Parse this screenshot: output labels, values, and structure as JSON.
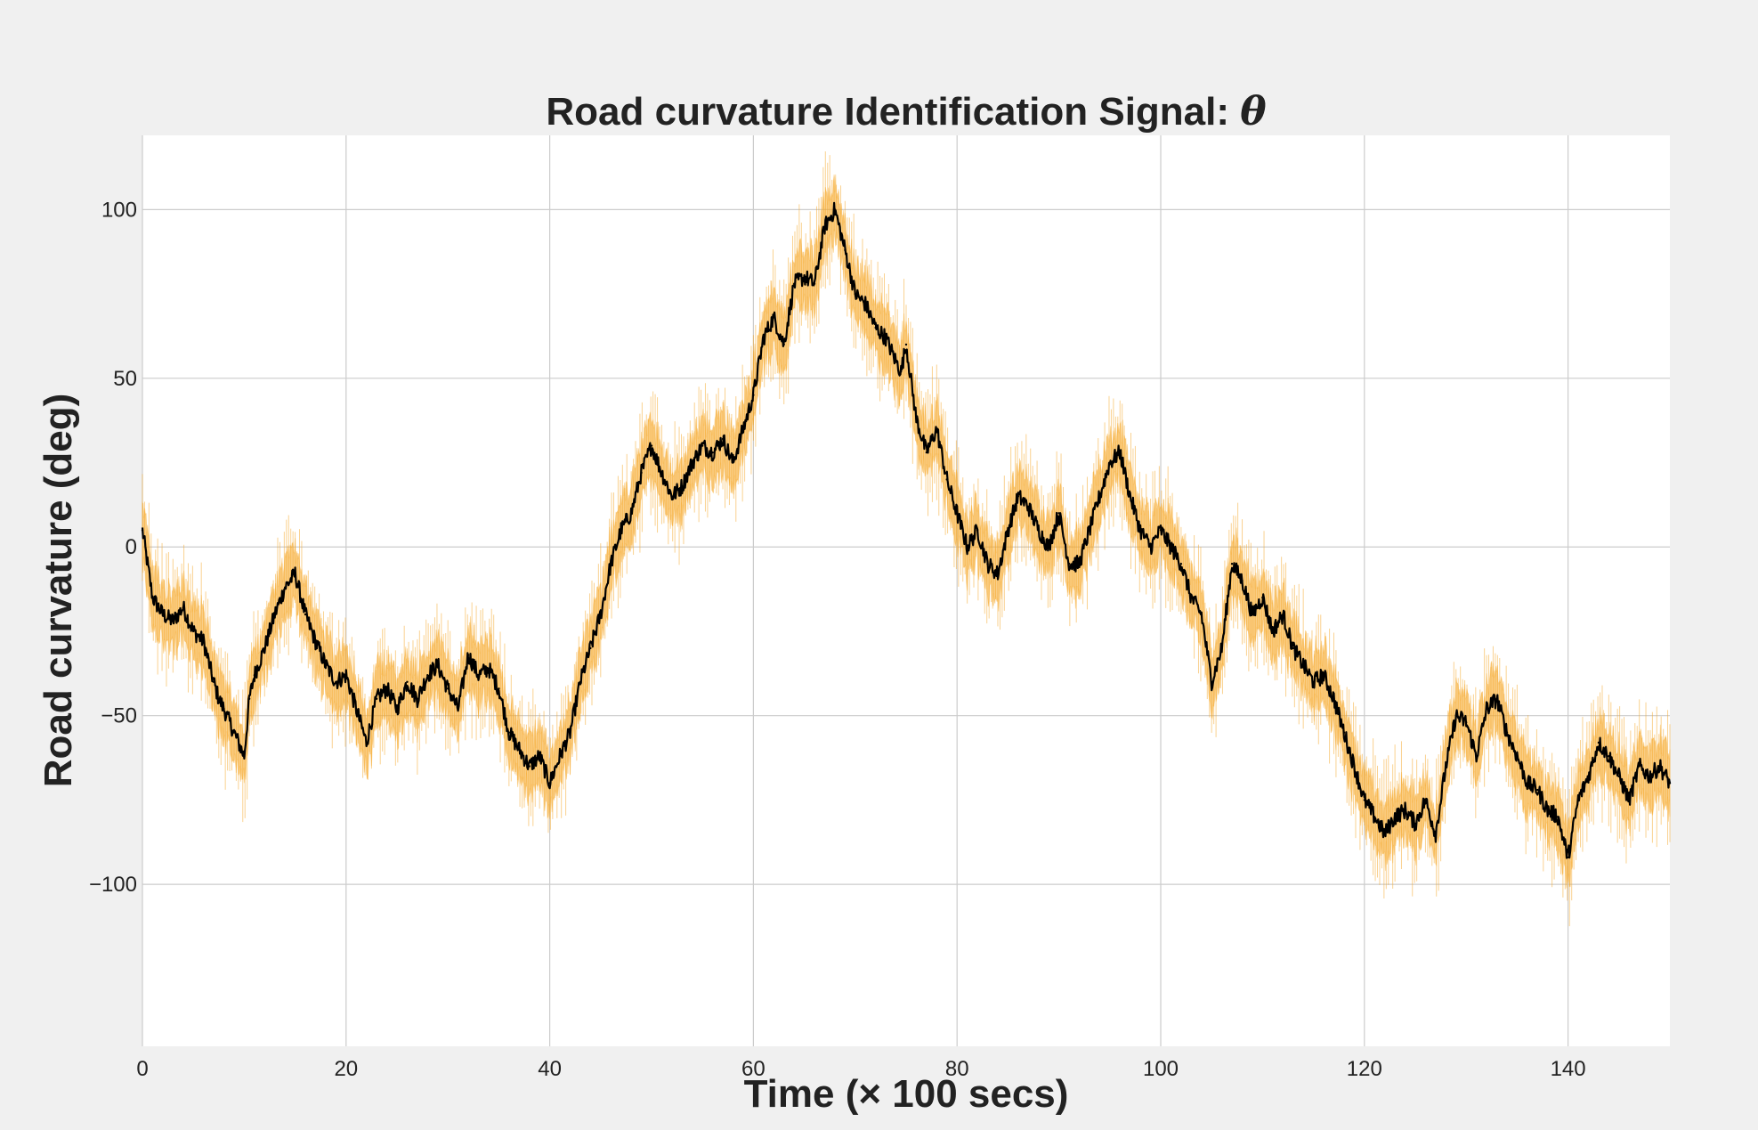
{
  "chart_data": {
    "type": "line",
    "title": "Road curvature Identification Signal: θ",
    "title_parts": {
      "text": "Road curvature Identification Signal: ",
      "symbol": "θ"
    },
    "xlabel": "Time (× 100 secs)",
    "ylabel": "Road curvature (deg)",
    "xlim": [
      0,
      150
    ],
    "ylim": [
      -148,
      122
    ],
    "xticks": [
      0,
      20,
      40,
      60,
      80,
      100,
      120,
      140
    ],
    "xtick_labels": [
      "0",
      "20",
      "40",
      "60",
      "80",
      "100",
      "120",
      "140"
    ],
    "yticks": [
      100,
      50,
      0,
      -50,
      -100
    ],
    "ytick_labels": [
      "100",
      "50",
      "0",
      "−50",
      "−100"
    ],
    "grid": true,
    "legend": "none",
    "colors": {
      "figure_background": "#f0f0f0",
      "plot_background": "#ffffff",
      "grid": "#cccccc",
      "line": "#000000",
      "band": "#f5a623",
      "text": "#222222"
    },
    "series": [
      {
        "style": "line with shaded uncertainty band",
        "band_halfwidth": 8,
        "x": [
          0,
          0.5,
          1,
          2,
          3,
          4,
          5,
          6,
          7,
          7.5,
          8,
          9,
          10,
          10.5,
          11,
          12,
          13,
          14,
          15,
          16,
          17,
          18,
          19,
          20,
          21,
          22,
          23,
          24,
          25,
          26,
          27,
          28,
          29,
          30,
          31,
          32,
          33,
          34,
          35,
          36,
          37,
          38,
          39,
          40,
          41,
          42,
          43,
          44,
          45,
          46,
          47,
          48,
          49,
          50,
          51,
          52,
          53,
          54,
          55,
          56,
          57,
          58,
          59,
          60,
          61,
          62,
          63,
          64,
          65,
          66,
          67,
          68,
          69,
          70,
          71,
          72,
          73,
          74,
          74.5,
          75,
          76,
          77,
          78,
          79,
          80,
          81,
          82,
          83,
          84,
          85,
          86,
          87,
          88,
          89,
          90,
          91,
          92,
          93,
          94,
          95,
          96,
          97,
          98,
          99,
          100,
          101,
          102,
          103,
          104,
          105,
          106,
          107,
          108,
          109,
          110,
          111,
          112,
          113,
          114,
          115,
          116,
          117,
          118,
          119,
          120,
          121,
          122,
          123,
          124,
          125,
          126,
          127,
          128,
          129,
          130,
          131,
          132,
          133,
          134,
          135,
          136,
          137,
          138,
          139,
          140,
          141,
          142,
          143,
          144,
          145,
          146,
          147,
          148,
          149,
          150
        ],
        "y": [
          5,
          -5,
          -15,
          -20,
          -22,
          -18,
          -25,
          -28,
          -40,
          -45,
          -48,
          -55,
          -62,
          -45,
          -38,
          -30,
          -20,
          -12,
          -8,
          -20,
          -28,
          -35,
          -40,
          -38,
          -48,
          -58,
          -45,
          -42,
          -48,
          -40,
          -45,
          -38,
          -35,
          -42,
          -48,
          -32,
          -38,
          -36,
          -42,
          -55,
          -60,
          -65,
          -62,
          -70,
          -62,
          -55,
          -40,
          -30,
          -20,
          -5,
          5,
          10,
          22,
          30,
          22,
          15,
          18,
          25,
          30,
          28,
          32,
          25,
          35,
          45,
          62,
          68,
          60,
          78,
          80,
          78,
          95,
          100,
          88,
          75,
          72,
          65,
          62,
          55,
          52,
          60,
          38,
          28,
          35,
          20,
          10,
          0,
          5,
          -5,
          -8,
          5,
          15,
          12,
          5,
          0,
          10,
          -5,
          -5,
          5,
          15,
          25,
          28,
          15,
          5,
          0,
          5,
          0,
          -5,
          -15,
          -20,
          -40,
          -30,
          -5,
          -10,
          -20,
          -15,
          -25,
          -20,
          -30,
          -35,
          -40,
          -38,
          -45,
          -55,
          -65,
          -75,
          -80,
          -85,
          -80,
          -78,
          -82,
          -75,
          -85,
          -65,
          -50,
          -52,
          -62,
          -48,
          -45,
          -55,
          -62,
          -70,
          -72,
          -78,
          -80,
          -92,
          -75,
          -68,
          -58,
          -62,
          -68,
          -75,
          -65,
          -68,
          -65,
          -70
        ]
      }
    ]
  }
}
